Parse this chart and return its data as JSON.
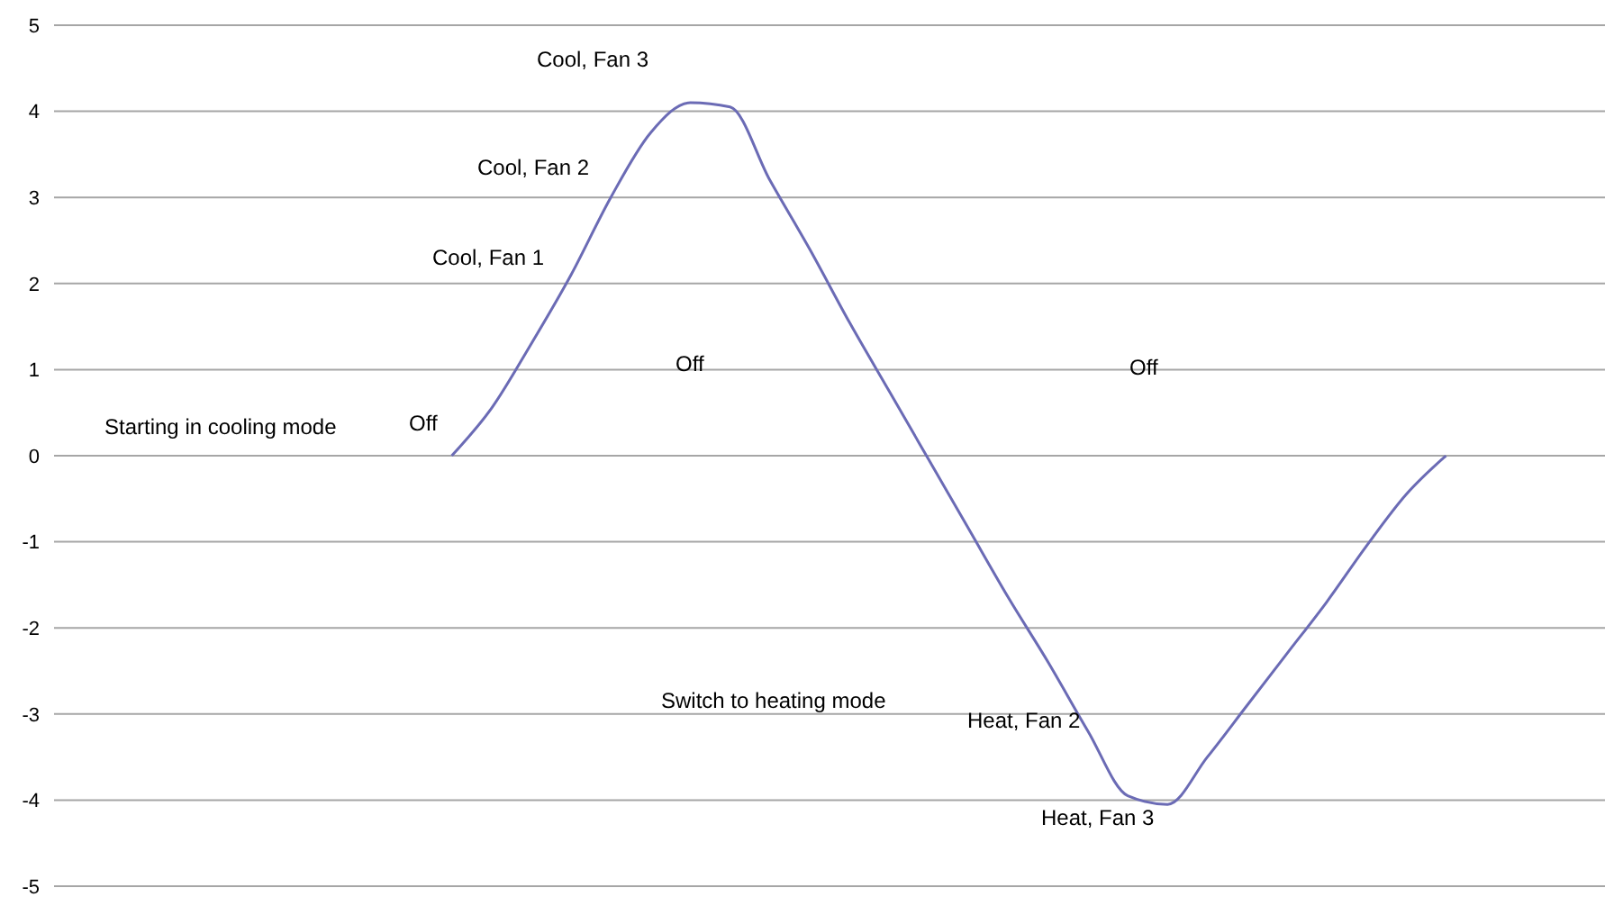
{
  "chart_data": {
    "type": "line",
    "categories": [
      null,
      null,
      null,
      null,
      null,
      null,
      null,
      null,
      null,
      null,
      null,
      null,
      null,
      null,
      null,
      null,
      null,
      null,
      null,
      null,
      null,
      null,
      null,
      null,
      null,
      null,
      null,
      null,
      null,
      null,
      null,
      null,
      null,
      null,
      null,
      null,
      null,
      null,
      null,
      null
    ],
    "series": [
      {
        "color": "#6b6bb5",
        "values": [
          null,
          null,
          null,
          null,
          null,
          null,
          null,
          null,
          null,
          null,
          0,
          0.55,
          1.3,
          2.1,
          3.0,
          3.75,
          4.1,
          4.05,
          3.2,
          2.4,
          1.55,
          0.75,
          -0.05,
          -0.85,
          -1.65,
          -2.4,
          -3.2,
          -3.95,
          -4.05,
          -3.5,
          -2.9,
          -2.3,
          -1.7,
          -1.05,
          -0.45,
          0,
          null,
          null,
          null,
          null
        ]
      }
    ],
    "ylim": [
      -5,
      5
    ],
    "yticks": [
      -5,
      -4,
      -3,
      -2,
      -1,
      0,
      1,
      2,
      3,
      4,
      5
    ],
    "grid": "y",
    "tick_labels": "y",
    "marker": "none",
    "line_style": "solid",
    "annotations": [
      "Starting in cooling mode",
      "Off",
      "Cool, Fan 1",
      "Cool, Fan 2",
      "Cool, Fan 3",
      "Off",
      "Off",
      "Switch to heating mode",
      "Heat, Fan 2",
      "Heat, Fan 3"
    ]
  }
}
